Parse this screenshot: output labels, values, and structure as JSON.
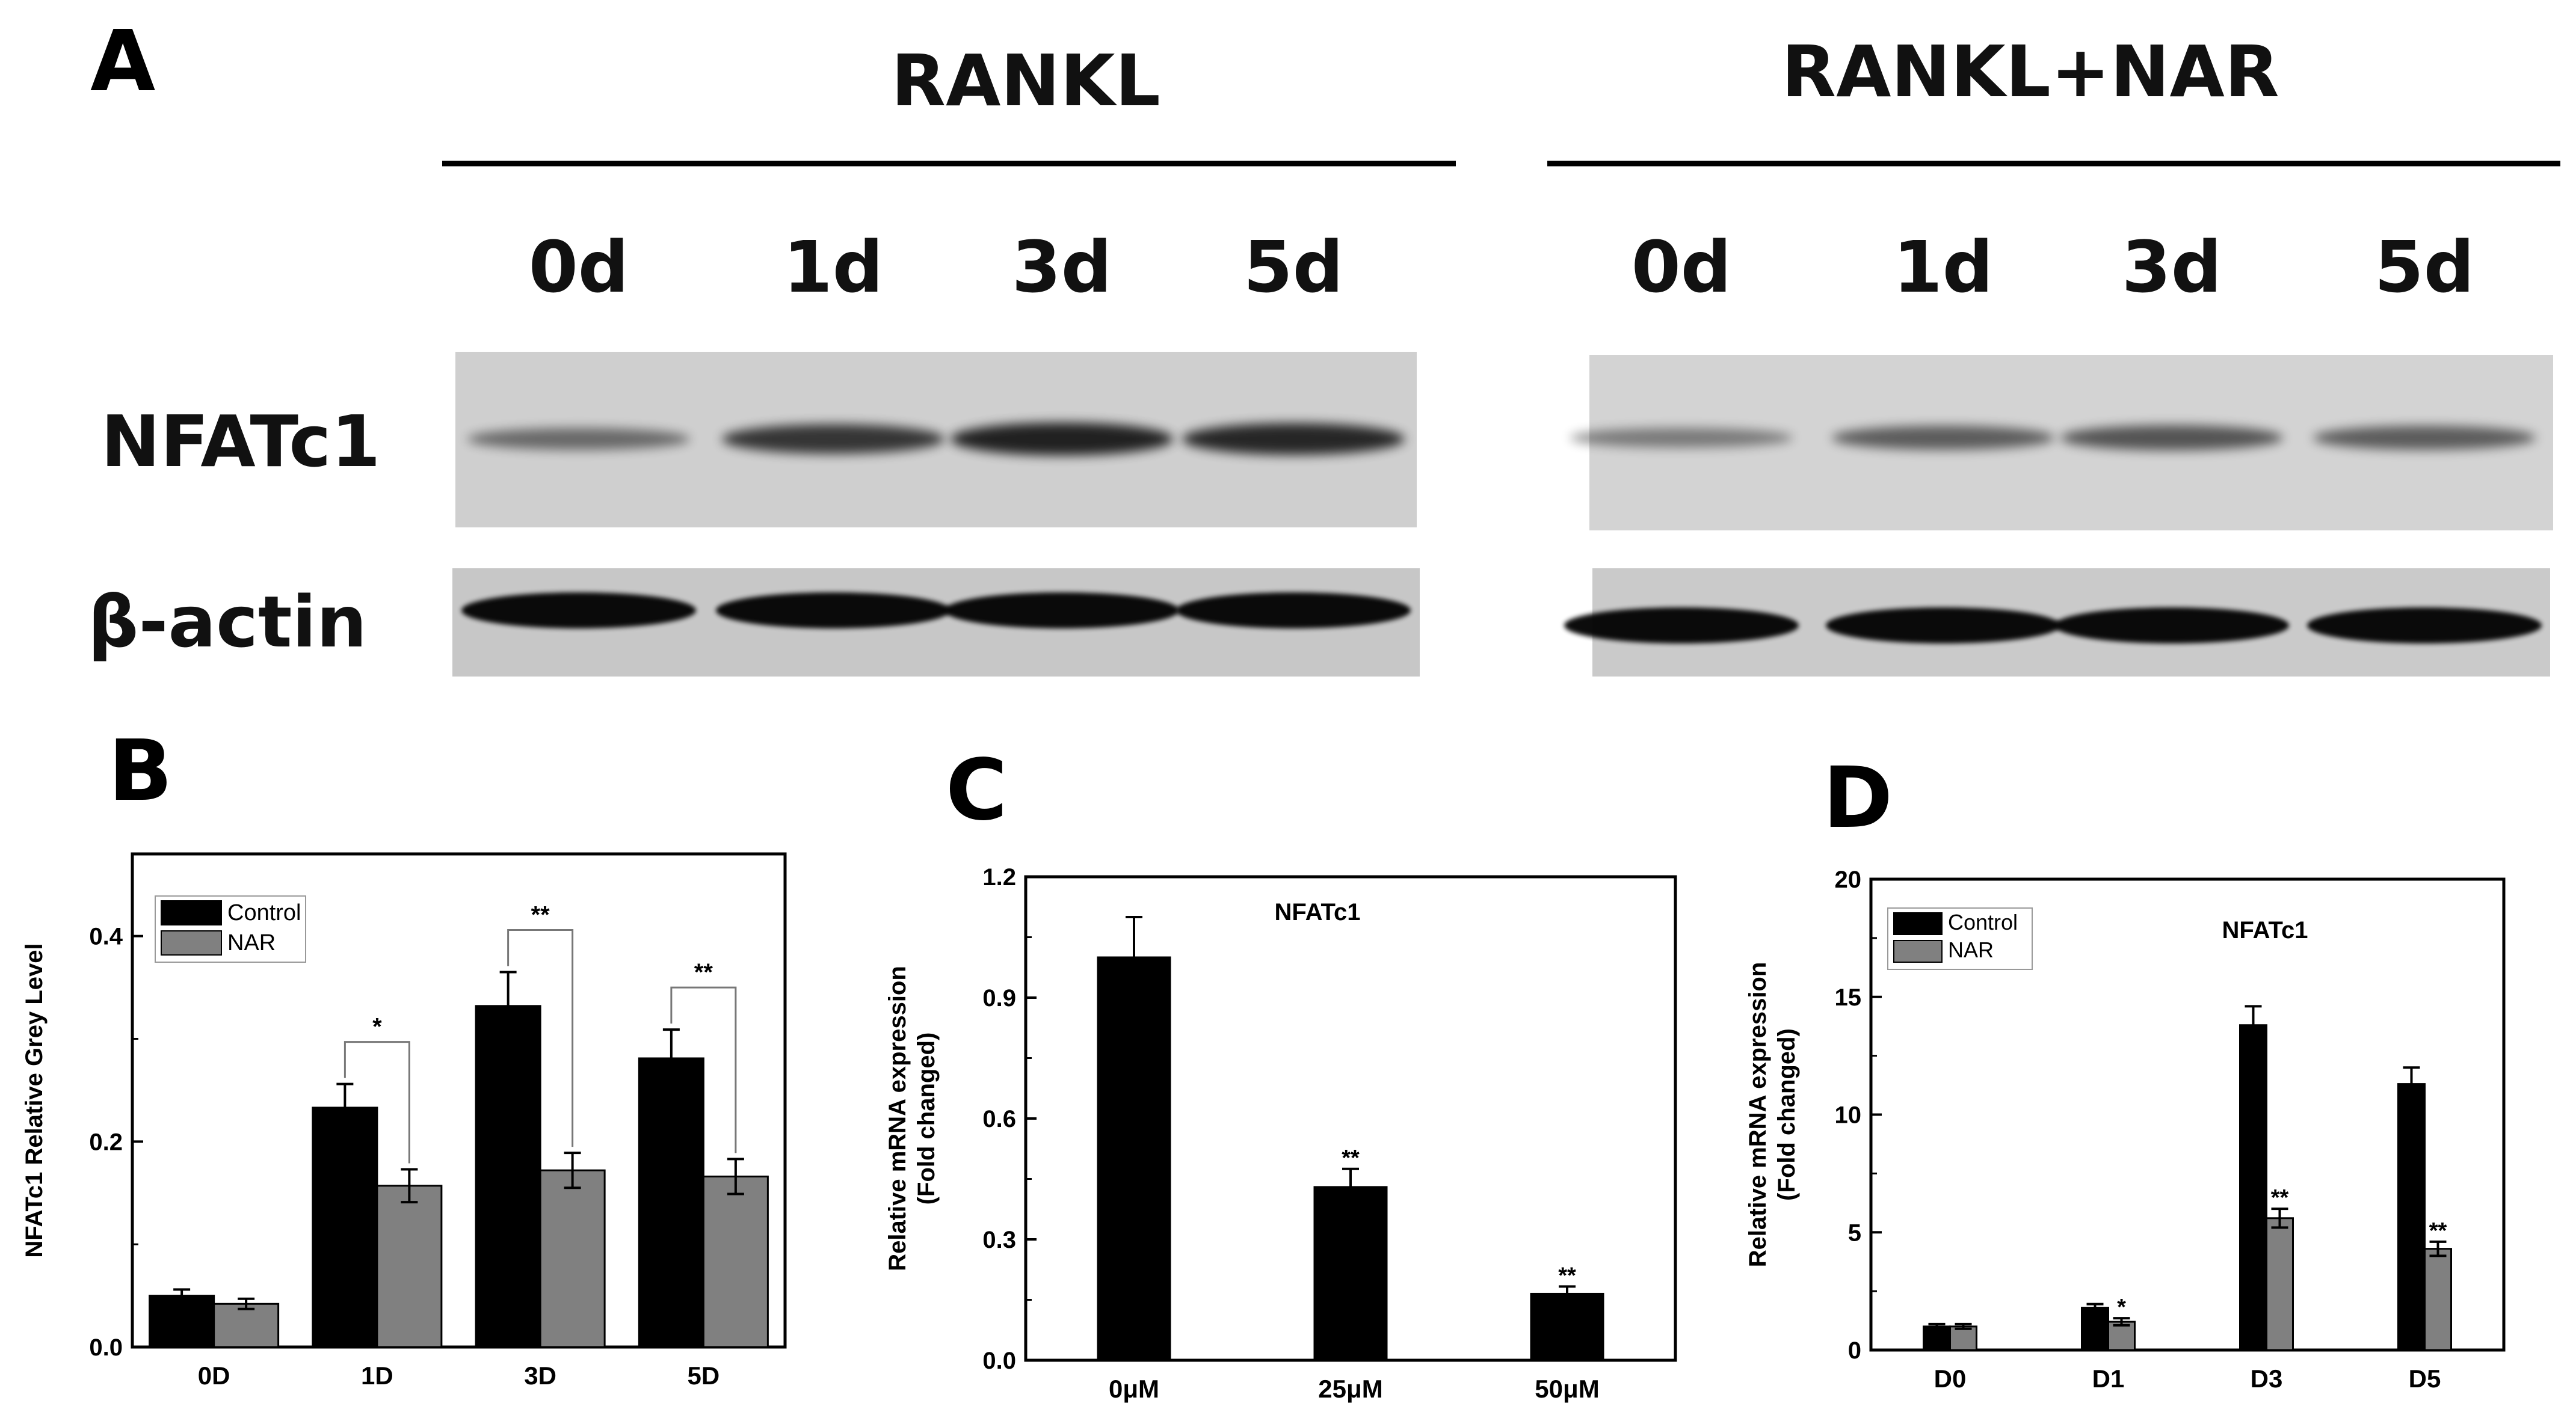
{
  "panel_a": {
    "letter": "A",
    "groups": [
      {
        "label": "RANKL",
        "lanes": [
          "0d",
          "1d",
          "3d",
          "5d"
        ],
        "nfatc1_intensity": [
          0.35,
          0.7,
          0.85,
          0.8
        ],
        "actin_intensity": [
          0.95,
          0.95,
          0.95,
          0.95
        ]
      },
      {
        "label": "RANKL+NAR",
        "lanes": [
          "0d",
          "1d",
          "3d",
          "5d"
        ],
        "nfatc1_intensity": [
          0.25,
          0.45,
          0.5,
          0.45
        ],
        "actin_intensity": [
          0.95,
          0.95,
          0.95,
          0.95
        ]
      }
    ],
    "rows": [
      "NFATc1",
      "β-actin"
    ]
  },
  "chart_data": [
    {
      "panel": "B",
      "type": "bar",
      "ylabel": "NFATc1 Relative Grey Level",
      "categories": [
        "0D",
        "1D",
        "3D",
        "5D"
      ],
      "series": [
        {
          "name": "Control",
          "color": "#000000",
          "values": [
            0.05,
            0.233,
            0.332,
            0.281
          ],
          "errors": [
            0.006,
            0.023,
            0.033,
            0.028
          ]
        },
        {
          "name": "NAR",
          "color": "#808080",
          "values": [
            0.042,
            0.157,
            0.172,
            0.166
          ],
          "errors": [
            0.005,
            0.016,
            0.017,
            0.017
          ]
        }
      ],
      "ylim": [
        0,
        0.48
      ],
      "yticks": [
        "0.0",
        "0.2",
        "0.4"
      ],
      "significance": [
        "",
        "*",
        "**",
        "**"
      ],
      "legend": "top-left"
    },
    {
      "panel": "C",
      "type": "bar",
      "title": "NFATc1",
      "ylabel_lines": [
        "Relative mRNA expression",
        "(Fold changed)"
      ],
      "categories": [
        "0μM",
        "25μM",
        "50μM"
      ],
      "series": [
        {
          "color": "#000000",
          "values": [
            1.0,
            0.43,
            0.165
          ],
          "errors": [
            0.1,
            0.045,
            0.018
          ]
        }
      ],
      "ylim": [
        0,
        1.2
      ],
      "yticks": [
        "0.0",
        "0.3",
        "0.6",
        "0.9",
        "1.2"
      ],
      "significance": [
        "",
        "**",
        "**"
      ]
    },
    {
      "panel": "D",
      "type": "bar",
      "title": "NFATc1",
      "ylabel_lines": [
        "Relative mRNA expression",
        "(Fold changed)"
      ],
      "categories": [
        "D0",
        "D1",
        "D3",
        "D5"
      ],
      "series": [
        {
          "name": "Control",
          "color": "#000000",
          "values": [
            1.0,
            1.8,
            13.8,
            11.3
          ],
          "errors": [
            0.1,
            0.15,
            0.8,
            0.7
          ]
        },
        {
          "name": "NAR",
          "color": "#808080",
          "values": [
            1.0,
            1.2,
            5.6,
            4.3
          ],
          "errors": [
            0.1,
            0.15,
            0.4,
            0.3
          ]
        }
      ],
      "ylim": [
        0,
        20
      ],
      "yticks": [
        "0",
        "5",
        "10",
        "15",
        "20"
      ],
      "significance": [
        "",
        "*",
        "**",
        "**"
      ],
      "legend": "top-left"
    }
  ]
}
